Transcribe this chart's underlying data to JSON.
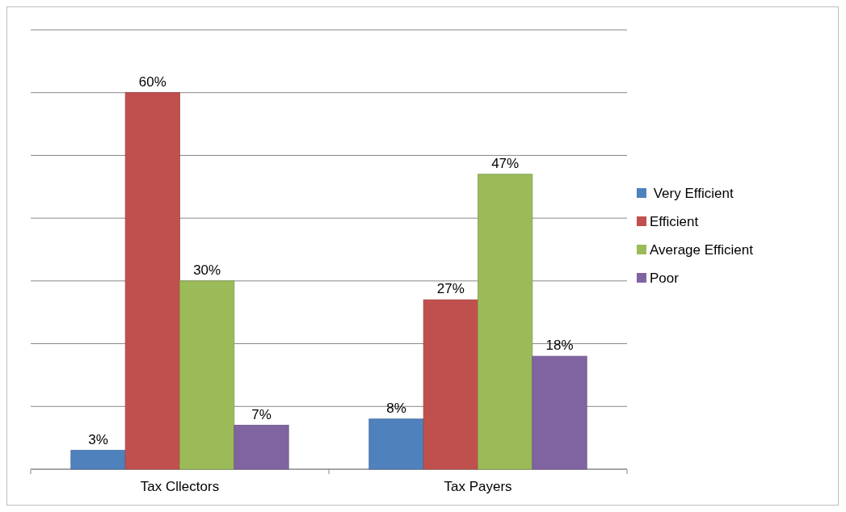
{
  "chart_data": {
    "type": "bar",
    "categories": [
      "Tax Cllectors",
      "Tax Payers"
    ],
    "series": [
      {
        "name": " Very Efficient",
        "color": "#4f81bd",
        "values": [
          3,
          8
        ],
        "value_labels": [
          "3%",
          "8%"
        ]
      },
      {
        "name": "Efficient",
        "color": "#c0504d",
        "values": [
          60,
          27
        ],
        "value_labels": [
          "60%",
          "27%"
        ]
      },
      {
        "name": "Average Efficient",
        "color": "#9bbb59",
        "values": [
          30,
          47
        ],
        "value_labels": [
          "30%",
          "47%"
        ]
      },
      {
        "name": "Poor",
        "color": "#8064a2",
        "values": [
          7,
          18
        ],
        "value_labels": [
          "7%",
          "18%"
        ]
      }
    ],
    "ylim": [
      0,
      70
    ],
    "yticks": [
      {
        "value": 0,
        "label": null
      },
      {
        "value": 10,
        "label": null
      },
      {
        "value": 20,
        "label": null
      },
      {
        "value": 30,
        "label": null
      },
      {
        "value": 40,
        "label": null
      },
      {
        "value": 50,
        "label": null
      },
      {
        "value": 60,
        "label": null
      },
      {
        "value": 70,
        "label": null
      }
    ],
    "tick_labels": "x",
    "grid": "y",
    "legend": "right"
  }
}
